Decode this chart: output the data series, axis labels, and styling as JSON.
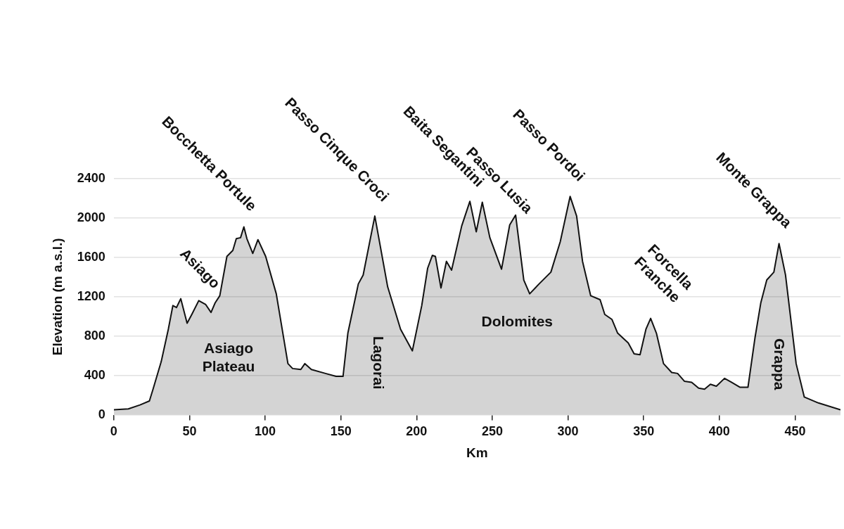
{
  "chart_data": {
    "type": "area",
    "xlabel": "Km",
    "ylabel": "Elevation (m a.s.l.)",
    "xlim": [
      0,
      480
    ],
    "ylim": [
      0,
      2400
    ],
    "xticks": [
      0,
      50,
      100,
      150,
      200,
      250,
      300,
      350,
      400,
      450
    ],
    "yticks": [
      0,
      400,
      800,
      1200,
      1600,
      2000,
      2400
    ],
    "grid": "y",
    "legend": false,
    "series": [
      {
        "color": "#111111",
        "x": [
          0,
          9.6,
          17.3,
          23.5,
          25.9,
          31.3,
          36,
          39,
          41.4,
          44.2,
          48.4,
          51.5,
          56.1,
          60.7,
          64.2,
          67,
          70,
          74.7,
          78.6,
          80.9,
          83.7,
          85.9,
          87.9,
          91.8,
          95.2,
          100.3,
          107.3,
          115,
          118.1,
          123.5,
          126.2,
          130.5,
          139.8,
          146.8,
          151.4,
          154.6,
          161.5,
          164.7,
          172.4,
          180.9,
          189.4,
          197.2,
          203.4,
          207.3,
          210.4,
          212.4,
          216.1,
          219.7,
          223.1,
          229.8,
          235.2,
          239.4,
          243.4,
          248.4,
          256.1,
          261.5,
          265.4,
          270.8,
          274.7,
          280.9,
          288.7,
          294.9,
          301.4,
          305.7,
          309.6,
          315,
          321.2,
          324.3,
          329,
          332.8,
          339.8,
          343.7,
          347.6,
          351.5,
          354.6,
          358.4,
          363.1,
          368.5,
          372.4,
          377,
          381.7,
          386.3,
          390.2,
          394.1,
          398,
          403.4,
          408,
          413.5,
          418.9,
          423.5,
          427.4,
          431.3,
          436,
          439.4,
          443.7,
          450.7,
          456.1,
          465.4,
          480
        ],
        "values": [
          50,
          60,
          100,
          140,
          260,
          540,
          870,
          1110,
          1090,
          1180,
          930,
          1020,
          1160,
          1120,
          1040,
          1140,
          1210,
          1610,
          1670,
          1790,
          1800,
          1910,
          1790,
          1640,
          1780,
          1610,
          1230,
          520,
          470,
          460,
          520,
          460,
          420,
          390,
          390,
          830,
          1330,
          1420,
          2020,
          1300,
          870,
          650,
          1110,
          1490,
          1620,
          1610,
          1290,
          1560,
          1470,
          1920,
          2170,
          1860,
          2160,
          1800,
          1480,
          1930,
          2030,
          1370,
          1230,
          1330,
          1450,
          1760,
          2220,
          2020,
          1560,
          1210,
          1170,
          1020,
          970,
          830,
          730,
          620,
          610,
          870,
          980,
          830,
          520,
          430,
          420,
          340,
          330,
          270,
          260,
          310,
          290,
          370,
          330,
          280,
          280,
          780,
          1140,
          1370,
          1450,
          1740,
          1420,
          520,
          180,
          120,
          50
        ]
      }
    ],
    "annotations": [
      {
        "text": "Asiago",
        "x": 44.2,
        "y": 1180
      },
      {
        "text": "Bocchetta Portule",
        "x": 85.9,
        "y": 1910
      },
      {
        "text": "Passo Cinque Croci",
        "x": 172.4,
        "y": 2020
      },
      {
        "text": "Baita Segantini",
        "x": 235.2,
        "y": 2170
      },
      {
        "text": "Passo Lusia",
        "x": 265.4,
        "y": 2030
      },
      {
        "text": "Passo Pordoi",
        "x": 301.4,
        "y": 2220
      },
      {
        "text": "Forcella\nFranche",
        "x": 354.6,
        "y": 980
      },
      {
        "text": "Monte Grappa",
        "x": 439.4,
        "y": 1740
      },
      "Asiago\nPlateau",
      "Lagorai",
      "Dolomites",
      "Grappa"
    ]
  }
}
